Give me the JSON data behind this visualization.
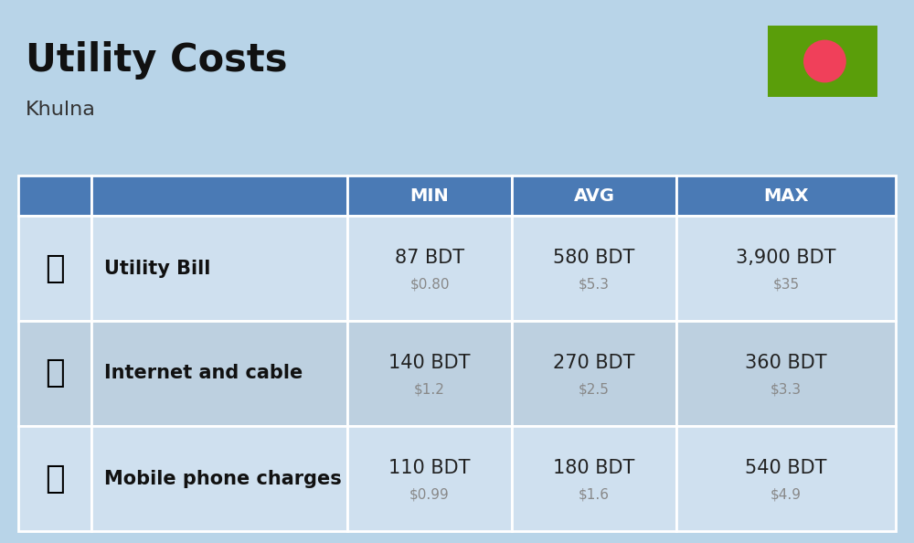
{
  "title": "Utility Costs",
  "subtitle": "Khulna",
  "background_color": "#b8d4e8",
  "header_color": "#4a7ab5",
  "header_text_color": "#ffffff",
  "row_color_1": "#cfe0ef",
  "row_color_2": "#bdd0e0",
  "rows": [
    {
      "label": "Utility Bill",
      "min_bdt": "87 BDT",
      "min_usd": "$0.80",
      "avg_bdt": "580 BDT",
      "avg_usd": "$5.3",
      "max_bdt": "3,900 BDT",
      "max_usd": "$35"
    },
    {
      "label": "Internet and cable",
      "min_bdt": "140 BDT",
      "min_usd": "$1.2",
      "avg_bdt": "270 BDT",
      "avg_usd": "$2.5",
      "max_bdt": "360 BDT",
      "max_usd": "$3.3"
    },
    {
      "label": "Mobile phone charges",
      "min_bdt": "110 BDT",
      "min_usd": "$0.99",
      "avg_bdt": "180 BDT",
      "avg_usd": "$1.6",
      "max_bdt": "540 BDT",
      "max_usd": "$4.9"
    }
  ],
  "flag_green": "#5a9e0a",
  "flag_red": "#f0405a",
  "title_fontsize": 30,
  "subtitle_fontsize": 16,
  "header_fontsize": 14,
  "cell_fontsize": 15,
  "usd_fontsize": 11,
  "label_fontsize": 15
}
